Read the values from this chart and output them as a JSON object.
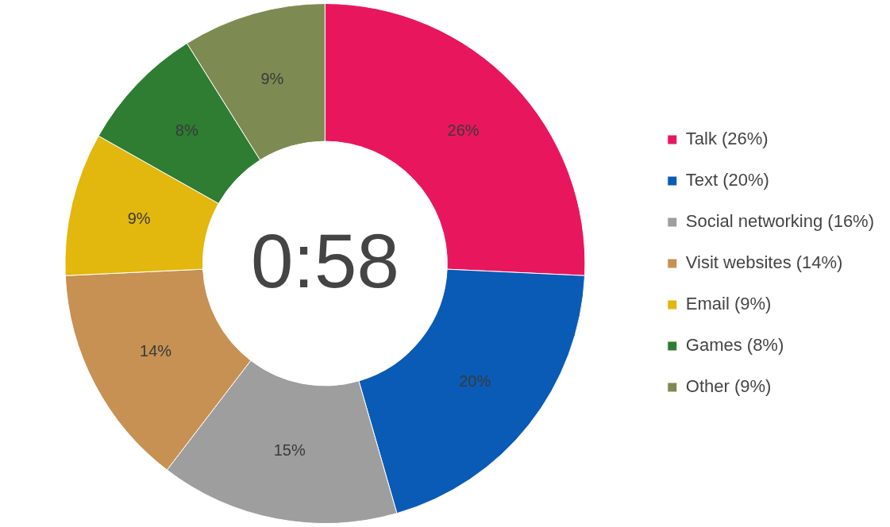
{
  "chart_data": {
    "type": "donut",
    "categories": [
      "Talk (26%)",
      "Text (20%)",
      "Social networking (16%)",
      "Visit websites (14%)",
      "Email (9%)",
      "Games (8%)",
      "Other (9%)"
    ],
    "values": [
      26,
      20,
      15,
      14,
      9,
      8,
      9
    ],
    "value_labels": [
      "26%",
      "20%",
      "15%",
      "14%",
      "9%",
      "8%",
      "9%"
    ],
    "colors": [
      "#e8175d",
      "#0a5bb5",
      "#9e9e9e",
      "#c69153",
      "#e2b70e",
      "#2e7d32",
      "#7d8b52"
    ],
    "annotations": [
      "0:58"
    ],
    "legend": "right"
  }
}
